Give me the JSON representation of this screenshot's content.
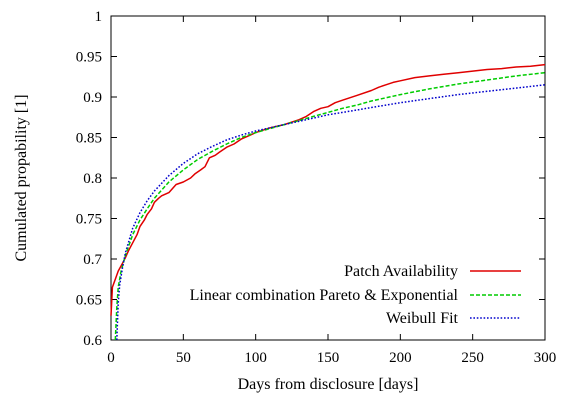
{
  "chart_data": {
    "type": "line",
    "title": "",
    "xlabel": "Days from disclosure [days]",
    "ylabel": "Cumulated propability [1]",
    "xlim": [
      0,
      300
    ],
    "ylim": [
      0.6,
      1.0
    ],
    "x_ticks": [
      "0",
      "50",
      "100",
      "150",
      "200",
      "250",
      "300"
    ],
    "y_ticks": [
      "0.6",
      "0.65",
      "0.7",
      "0.75",
      "0.8",
      "0.85",
      "0.9",
      "0.95",
      "1"
    ],
    "grid": false,
    "legend_position": "bottom-right",
    "series": [
      {
        "name": "Patch Availability",
        "color": "#e00000",
        "style": "solid",
        "points": [
          [
            0,
            0.63
          ],
          [
            1,
            0.665
          ],
          [
            3,
            0.675
          ],
          [
            5,
            0.685
          ],
          [
            8,
            0.695
          ],
          [
            10,
            0.702
          ],
          [
            12,
            0.71
          ],
          [
            15,
            0.72
          ],
          [
            18,
            0.73
          ],
          [
            20,
            0.74
          ],
          [
            23,
            0.748
          ],
          [
            25,
            0.755
          ],
          [
            28,
            0.762
          ],
          [
            30,
            0.77
          ],
          [
            33,
            0.775
          ],
          [
            35,
            0.778
          ],
          [
            40,
            0.782
          ],
          [
            43,
            0.788
          ],
          [
            45,
            0.792
          ],
          [
            50,
            0.795
          ],
          [
            55,
            0.8
          ],
          [
            58,
            0.805
          ],
          [
            62,
            0.81
          ],
          [
            65,
            0.814
          ],
          [
            68,
            0.825
          ],
          [
            72,
            0.828
          ],
          [
            75,
            0.832
          ],
          [
            80,
            0.838
          ],
          [
            85,
            0.842
          ],
          [
            90,
            0.848
          ],
          [
            95,
            0.852
          ],
          [
            100,
            0.856
          ],
          [
            110,
            0.862
          ],
          [
            120,
            0.866
          ],
          [
            130,
            0.872
          ],
          [
            135,
            0.876
          ],
          [
            140,
            0.882
          ],
          [
            145,
            0.886
          ],
          [
            150,
            0.888
          ],
          [
            155,
            0.893
          ],
          [
            160,
            0.896
          ],
          [
            170,
            0.902
          ],
          [
            180,
            0.908
          ],
          [
            185,
            0.912
          ],
          [
            190,
            0.915
          ],
          [
            195,
            0.918
          ],
          [
            200,
            0.92
          ],
          [
            210,
            0.924
          ],
          [
            220,
            0.926
          ],
          [
            230,
            0.928
          ],
          [
            240,
            0.93
          ],
          [
            250,
            0.932
          ],
          [
            260,
            0.934
          ],
          [
            270,
            0.935
          ],
          [
            280,
            0.937
          ],
          [
            290,
            0.938
          ],
          [
            300,
            0.94
          ]
        ]
      },
      {
        "name": "Linear combination Pareto & Exponential",
        "color": "#00cc00",
        "style": "dashed",
        "points": [
          [
            3,
            0.6
          ],
          [
            4,
            0.64
          ],
          [
            5,
            0.665
          ],
          [
            7,
            0.685
          ],
          [
            10,
            0.705
          ],
          [
            15,
            0.73
          ],
          [
            20,
            0.748
          ],
          [
            25,
            0.762
          ],
          [
            30,
            0.775
          ],
          [
            40,
            0.795
          ],
          [
            50,
            0.81
          ],
          [
            60,
            0.823
          ],
          [
            70,
            0.833
          ],
          [
            80,
            0.842
          ],
          [
            90,
            0.85
          ],
          [
            100,
            0.856
          ],
          [
            110,
            0.861
          ],
          [
            120,
            0.866
          ],
          [
            130,
            0.871
          ],
          [
            140,
            0.876
          ],
          [
            150,
            0.881
          ],
          [
            160,
            0.886
          ],
          [
            170,
            0.89
          ],
          [
            180,
            0.895
          ],
          [
            190,
            0.899
          ],
          [
            200,
            0.903
          ],
          [
            220,
            0.91
          ],
          [
            240,
            0.916
          ],
          [
            260,
            0.921
          ],
          [
            280,
            0.926
          ],
          [
            300,
            0.93
          ]
        ]
      },
      {
        "name": "Weibull Fit",
        "color": "#0000cc",
        "style": "dotted",
        "points": [
          [
            4,
            0.6
          ],
          [
            5,
            0.645
          ],
          [
            6,
            0.668
          ],
          [
            8,
            0.69
          ],
          [
            10,
            0.708
          ],
          [
            15,
            0.738
          ],
          [
            20,
            0.757
          ],
          [
            25,
            0.772
          ],
          [
            30,
            0.784
          ],
          [
            40,
            0.803
          ],
          [
            50,
            0.818
          ],
          [
            60,
            0.83
          ],
          [
            70,
            0.839
          ],
          [
            80,
            0.847
          ],
          [
            90,
            0.853
          ],
          [
            100,
            0.858
          ],
          [
            110,
            0.862
          ],
          [
            120,
            0.866
          ],
          [
            130,
            0.87
          ],
          [
            140,
            0.874
          ],
          [
            150,
            0.878
          ],
          [
            160,
            0.881
          ],
          [
            170,
            0.884
          ],
          [
            180,
            0.887
          ],
          [
            190,
            0.89
          ],
          [
            200,
            0.893
          ],
          [
            220,
            0.898
          ],
          [
            240,
            0.903
          ],
          [
            260,
            0.907
          ],
          [
            280,
            0.911
          ],
          [
            300,
            0.915
          ]
        ]
      }
    ]
  }
}
